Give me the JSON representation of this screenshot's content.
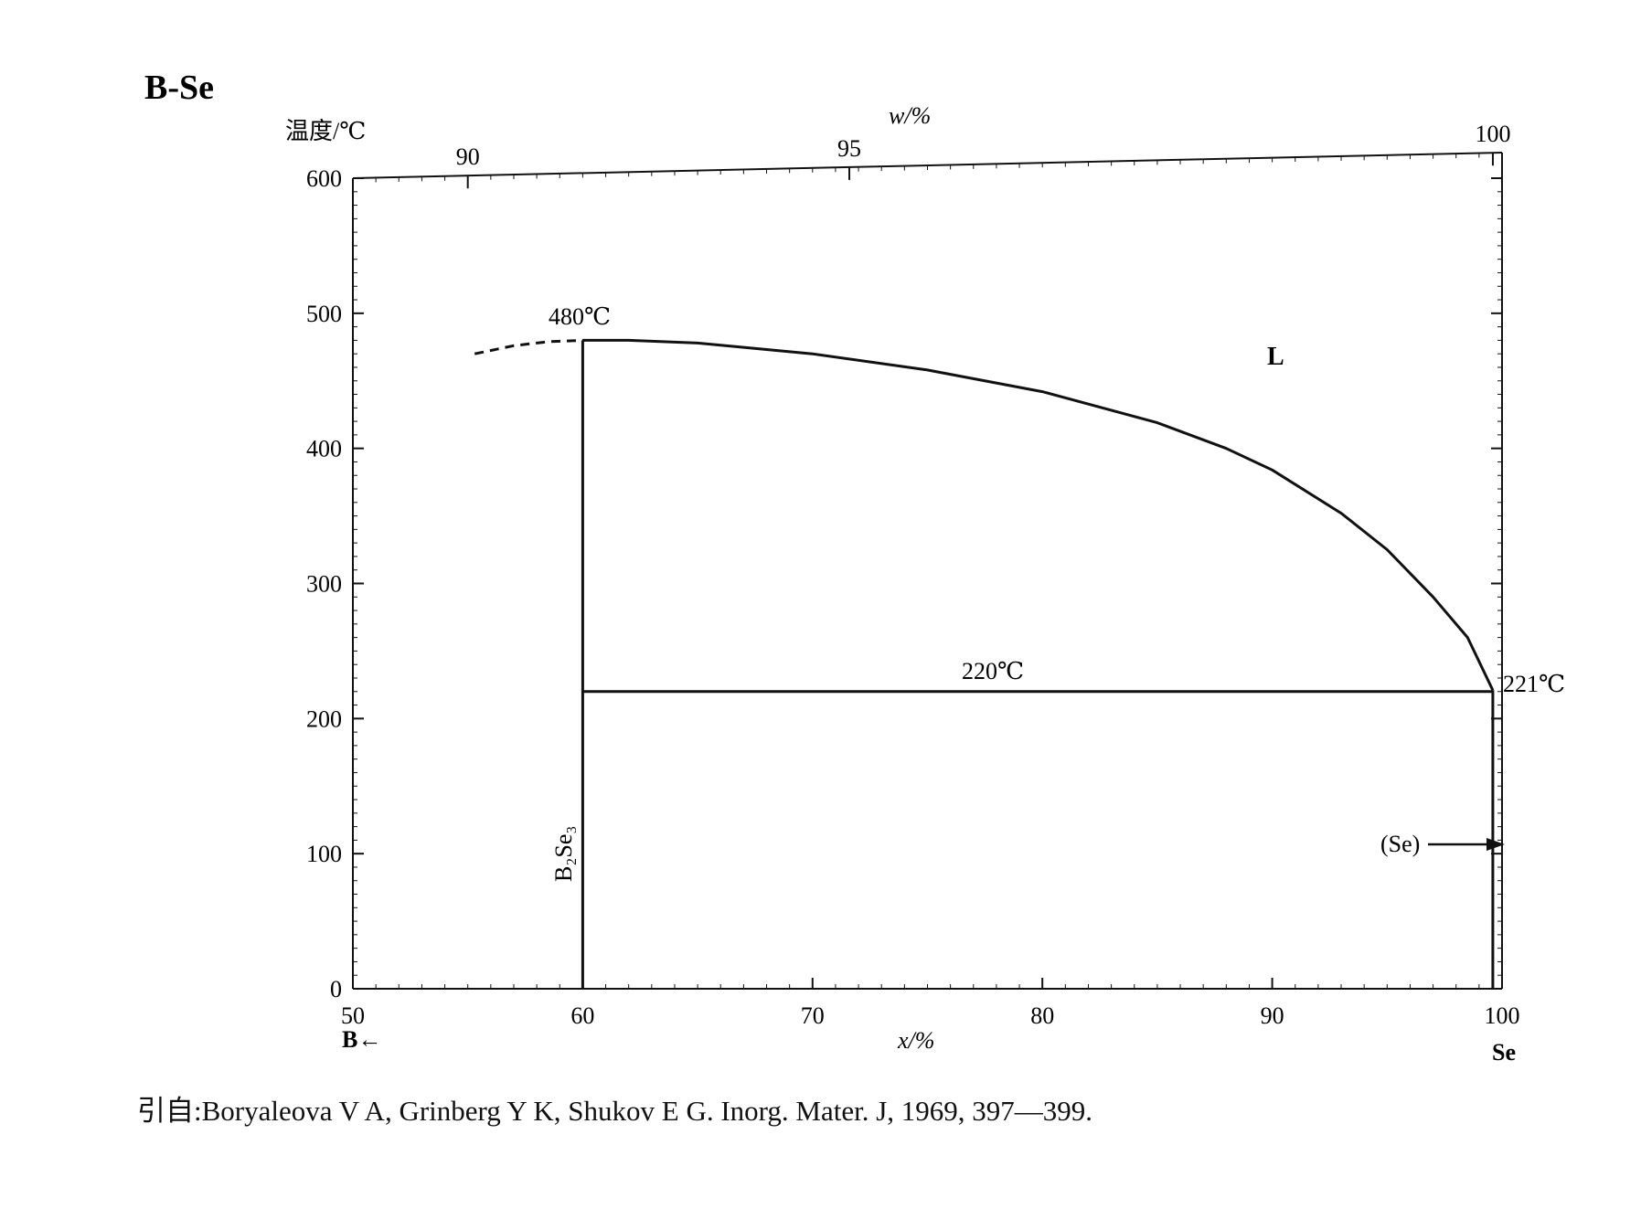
{
  "chart_data": {
    "type": "line",
    "title": "B-Se",
    "ylabel": "温度/℃",
    "xlabel": "x/%",
    "top_xlabel": "w/%",
    "xlim": [
      50,
      100
    ],
    "ylim": [
      0,
      600
    ],
    "x_ticks": [
      "50",
      "60",
      "70",
      "80",
      "90",
      "100"
    ],
    "y_ticks": [
      "0",
      "100",
      "200",
      "300",
      "400",
      "500",
      "600"
    ],
    "top_ticks": [
      {
        "label": "90",
        "x_at": 55.0
      },
      {
        "label": "95",
        "x_at": 71.6
      },
      {
        "label": "100",
        "x_at": 99.6
      }
    ],
    "left_element": "B←",
    "right_element": "Se",
    "series": [
      {
        "style": "solid",
        "points": [
          [
            60,
            480
          ],
          [
            62,
            480
          ],
          [
            65,
            478
          ],
          [
            70,
            470
          ],
          [
            75,
            458
          ],
          [
            80,
            442
          ],
          [
            85,
            419
          ],
          [
            88,
            400
          ],
          [
            90,
            384
          ],
          [
            93,
            352
          ],
          [
            95,
            325
          ],
          [
            97,
            290
          ],
          [
            98.5,
            260
          ],
          [
            99.6,
            221
          ]
        ]
      },
      {
        "style": "dashed",
        "points": [
          [
            55.3,
            470
          ],
          [
            57,
            476
          ],
          [
            58.5,
            479
          ],
          [
            60,
            480
          ]
        ]
      },
      {
        "style": "solid",
        "points": [
          [
            60,
            0
          ],
          [
            60,
            480
          ]
        ]
      },
      {
        "style": "solid",
        "points": [
          [
            60,
            220
          ],
          [
            99.6,
            220
          ]
        ]
      },
      {
        "style": "solid",
        "points": [
          [
            99.6,
            0
          ],
          [
            99.6,
            221
          ]
        ]
      }
    ],
    "annotations": {
      "peak": "480℃",
      "eutectic": "220℃",
      "se_melt": "221℃",
      "liquid": "L",
      "compound": "B₂Se₃",
      "se_phase": "(Se)"
    }
  },
  "caption": "引自:Boryaleova V A, Grinberg Y K, Shukov E G. Inorg. Mater. J, 1969, 397—399."
}
